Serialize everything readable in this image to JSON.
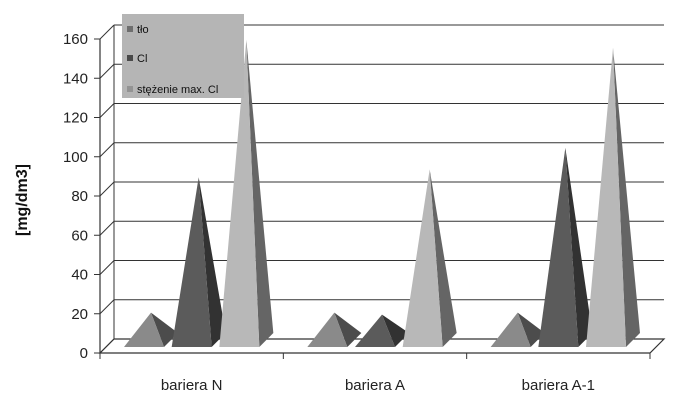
{
  "chart_data": {
    "type": "bar",
    "subtype": "3d-pyramid",
    "title": "",
    "xlabel": "",
    "ylabel": "[mg/dm3]",
    "ylim": [
      0,
      160
    ],
    "yticks": [
      "0",
      "20",
      "40",
      "60",
      "80",
      "100",
      "120",
      "140",
      "160"
    ],
    "grid": true,
    "legend_position": "top-left",
    "categories": [
      "bariera N",
      "bariera A",
      "bariera A-1"
    ],
    "series": [
      {
        "name": "tło",
        "color": "#8a8a8a",
        "values": [
          17,
          17,
          17
        ]
      },
      {
        "name": "Cl",
        "color": "#5b5b5b",
        "values": [
          86,
          16,
          101
        ]
      },
      {
        "name": "stężenie max. Cl",
        "color": "#b8b8b8",
        "values": [
          156,
          90,
          152
        ]
      }
    ]
  }
}
